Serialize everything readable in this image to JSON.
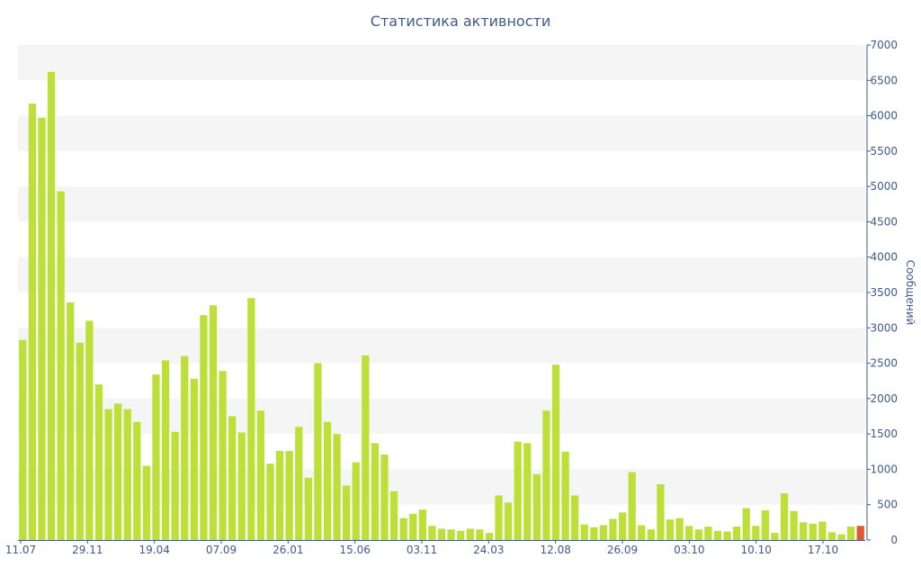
{
  "chart_data": {
    "type": "bar",
    "title": "Статистика активности",
    "ylabel": "Сообщений",
    "xlabel": "",
    "ylim": [
      0,
      7000
    ],
    "yticks": [
      0,
      500,
      1000,
      1500,
      2000,
      2500,
      3000,
      3500,
      4000,
      4500,
      5000,
      5500,
      6000,
      6500,
      7000
    ],
    "x_tick_labels": [
      "11.07",
      "29.11",
      "19.04",
      "07.09",
      "26.01",
      "15.06",
      "03.11",
      "24.03",
      "12.08",
      "26.09",
      "03.10",
      "10.10",
      "17.10"
    ],
    "grid": "alternating horizontal bands",
    "y_axis_side": "right",
    "colors": {
      "bar": "#bde038",
      "last_bar": "#e05a30",
      "axis_text": "#3f5a8c",
      "band": "#f5f5f5"
    },
    "values": [
      2830,
      6170,
      5970,
      6620,
      4930,
      3360,
      2790,
      3100,
      2200,
      1850,
      1930,
      1850,
      1670,
      1050,
      2340,
      2540,
      1530,
      2600,
      2280,
      3180,
      3320,
      2390,
      1750,
      1520,
      3420,
      1830,
      1080,
      1260,
      1260,
      1600,
      880,
      2500,
      1670,
      1500,
      770,
      1100,
      2610,
      1370,
      1210,
      690,
      310,
      370,
      430,
      200,
      160,
      150,
      130,
      160,
      150,
      100,
      630,
      530,
      1390,
      1370,
      930,
      1830,
      2480,
      1250,
      630,
      220,
      180,
      210,
      300,
      390,
      960,
      210,
      150,
      790,
      290,
      310,
      200,
      150,
      190,
      130,
      120,
      190,
      450,
      200,
      420,
      100,
      660,
      410,
      250,
      230,
      260,
      110,
      80,
      190,
      200
    ]
  }
}
